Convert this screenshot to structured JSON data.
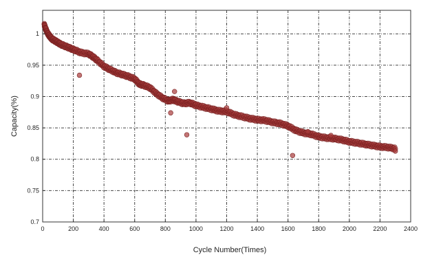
{
  "chart_data": {
    "type": "scatter",
    "xlabel": "Cycle Number(Times)",
    "ylabel": "Capacity(%)",
    "xlim": [
      0,
      2400
    ],
    "ylim": [
      0.7,
      1.0375
    ],
    "x_ticks": [
      "0",
      "200",
      "400",
      "600",
      "800",
      "1000",
      "1200",
      "1400",
      "1600",
      "1800",
      "2000",
      "2200",
      "2400"
    ],
    "y_ticks": [
      "0.7",
      "0.75",
      "0.8",
      "0.85",
      "0.9",
      "0.95",
      "1"
    ],
    "x_tick_values": [
      0,
      200,
      400,
      600,
      800,
      1000,
      1200,
      1400,
      1600,
      1800,
      2000,
      2200,
      2400
    ],
    "y_tick_values": [
      0.7,
      0.75,
      0.8,
      0.85,
      0.9,
      0.95,
      1.0
    ],
    "grid": true,
    "marker_color": "#a83a3a",
    "series": [
      {
        "points": [
          [
            10,
            1.015
          ],
          [
            20,
            1.008
          ],
          [
            30,
            1.002
          ],
          [
            40,
            0.998
          ],
          [
            50,
            0.995
          ],
          [
            60,
            0.992
          ],
          [
            80,
            0.989
          ],
          [
            100,
            0.986
          ],
          [
            120,
            0.983
          ],
          [
            150,
            0.98
          ],
          [
            180,
            0.977
          ],
          [
            210,
            0.974
          ],
          [
            250,
            0.97
          ],
          [
            300,
            0.968
          ],
          [
            330,
            0.963
          ],
          [
            360,
            0.957
          ],
          [
            400,
            0.948
          ],
          [
            440,
            0.943
          ],
          [
            480,
            0.938
          ],
          [
            520,
            0.935
          ],
          [
            560,
            0.932
          ],
          [
            600,
            0.928
          ],
          [
            630,
            0.92
          ],
          [
            660,
            0.918
          ],
          [
            700,
            0.914
          ],
          [
            740,
            0.905
          ],
          [
            780,
            0.898
          ],
          [
            820,
            0.893
          ],
          [
            850,
            0.895
          ],
          [
            880,
            0.892
          ],
          [
            920,
            0.889
          ],
          [
            960,
            0.89
          ],
          [
            1000,
            0.886
          ],
          [
            1050,
            0.883
          ],
          [
            1100,
            0.88
          ],
          [
            1150,
            0.877
          ],
          [
            1200,
            0.876
          ],
          [
            1250,
            0.871
          ],
          [
            1300,
            0.868
          ],
          [
            1350,
            0.865
          ],
          [
            1400,
            0.863
          ],
          [
            1450,
            0.862
          ],
          [
            1500,
            0.859
          ],
          [
            1550,
            0.857
          ],
          [
            1600,
            0.853
          ],
          [
            1650,
            0.846
          ],
          [
            1700,
            0.842
          ],
          [
            1750,
            0.84
          ],
          [
            1800,
            0.836
          ],
          [
            1850,
            0.834
          ],
          [
            1900,
            0.833
          ],
          [
            1950,
            0.831
          ],
          [
            2000,
            0.828
          ],
          [
            2050,
            0.826
          ],
          [
            2100,
            0.824
          ],
          [
            2150,
            0.822
          ],
          [
            2200,
            0.82
          ],
          [
            2250,
            0.819
          ],
          [
            2300,
            0.817
          ]
        ],
        "outliers": [
          [
            240,
            0.934
          ],
          [
            835,
            0.874
          ],
          [
            860,
            0.908
          ],
          [
            940,
            0.839
          ],
          [
            1630,
            0.806
          ],
          [
            1200,
            0.882
          ],
          [
            1730,
            0.844
          ],
          [
            1880,
            0.838
          ],
          [
            2300,
            0.813
          ]
        ]
      }
    ]
  }
}
